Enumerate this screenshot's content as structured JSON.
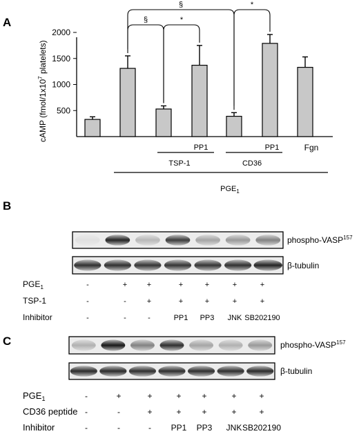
{
  "panels": {
    "a": "A",
    "b": "B",
    "c": "C"
  },
  "chart_data": {
    "type": "bar",
    "ylabel_main": "cAMP (fmol/1x10",
    "ylabel_sup": "7",
    "ylabel_end": " platelets)",
    "ylim": [
      0,
      2000
    ],
    "yticks": [
      500,
      1000,
      1500,
      2000
    ],
    "grid": false,
    "values": [
      330,
      1310,
      530,
      1370,
      390,
      1790,
      1330
    ],
    "errors": [
      50,
      240,
      60,
      380,
      70,
      170,
      200
    ],
    "significance": [
      {
        "symbol": "§",
        "from": 1,
        "to": 2
      },
      {
        "symbol": "*",
        "from": 2,
        "to": 3
      },
      {
        "symbol": "§",
        "from": 1,
        "to": 4
      },
      {
        "symbol": "*",
        "from": 4,
        "to": 5
      }
    ],
    "lane_labels": {
      "pp1_a": "PP1",
      "pp1_b": "PP1",
      "fgn": "Fgn",
      "tsp1": "TSP-1",
      "cd36": "CD36",
      "pge": "PGE",
      "pge_sub": "1"
    }
  },
  "blot_b": {
    "label_vasp": "phospho-VASP",
    "label_vasp_sup": "157",
    "label_tubulin": "β-tubulin",
    "rows": [
      {
        "name": "PGE",
        "sub": "1",
        "cells": [
          "-",
          "+",
          "+",
          "+",
          "+",
          "+",
          "+"
        ]
      },
      {
        "name": "TSP-1",
        "sub": "",
        "cells": [
          "-",
          "-",
          "+",
          "+",
          "+",
          "+",
          "+"
        ]
      },
      {
        "name": "Inhibitor",
        "sub": "",
        "cells": [
          "-",
          "-",
          "-",
          "PP1",
          "PP3",
          "JNK",
          "SB202190"
        ]
      }
    ]
  },
  "blot_c": {
    "label_vasp": "phospho-VASP",
    "label_vasp_sup": "157",
    "label_tubulin": "β-tubulin",
    "rows": [
      {
        "name": "PGE",
        "sub": "1",
        "cells": [
          "-",
          "+",
          "+",
          "+",
          "+",
          "+",
          "+"
        ]
      },
      {
        "name": "CD36 peptide",
        "sub": "",
        "cells": [
          "-",
          "-",
          "+",
          "+",
          "+",
          "+",
          "+"
        ]
      },
      {
        "name": "Inhibitor",
        "sub": "",
        "cells": [
          "-",
          "-",
          "-",
          "PP1",
          "PP3",
          "JNK",
          "SB202190"
        ]
      }
    ]
  }
}
